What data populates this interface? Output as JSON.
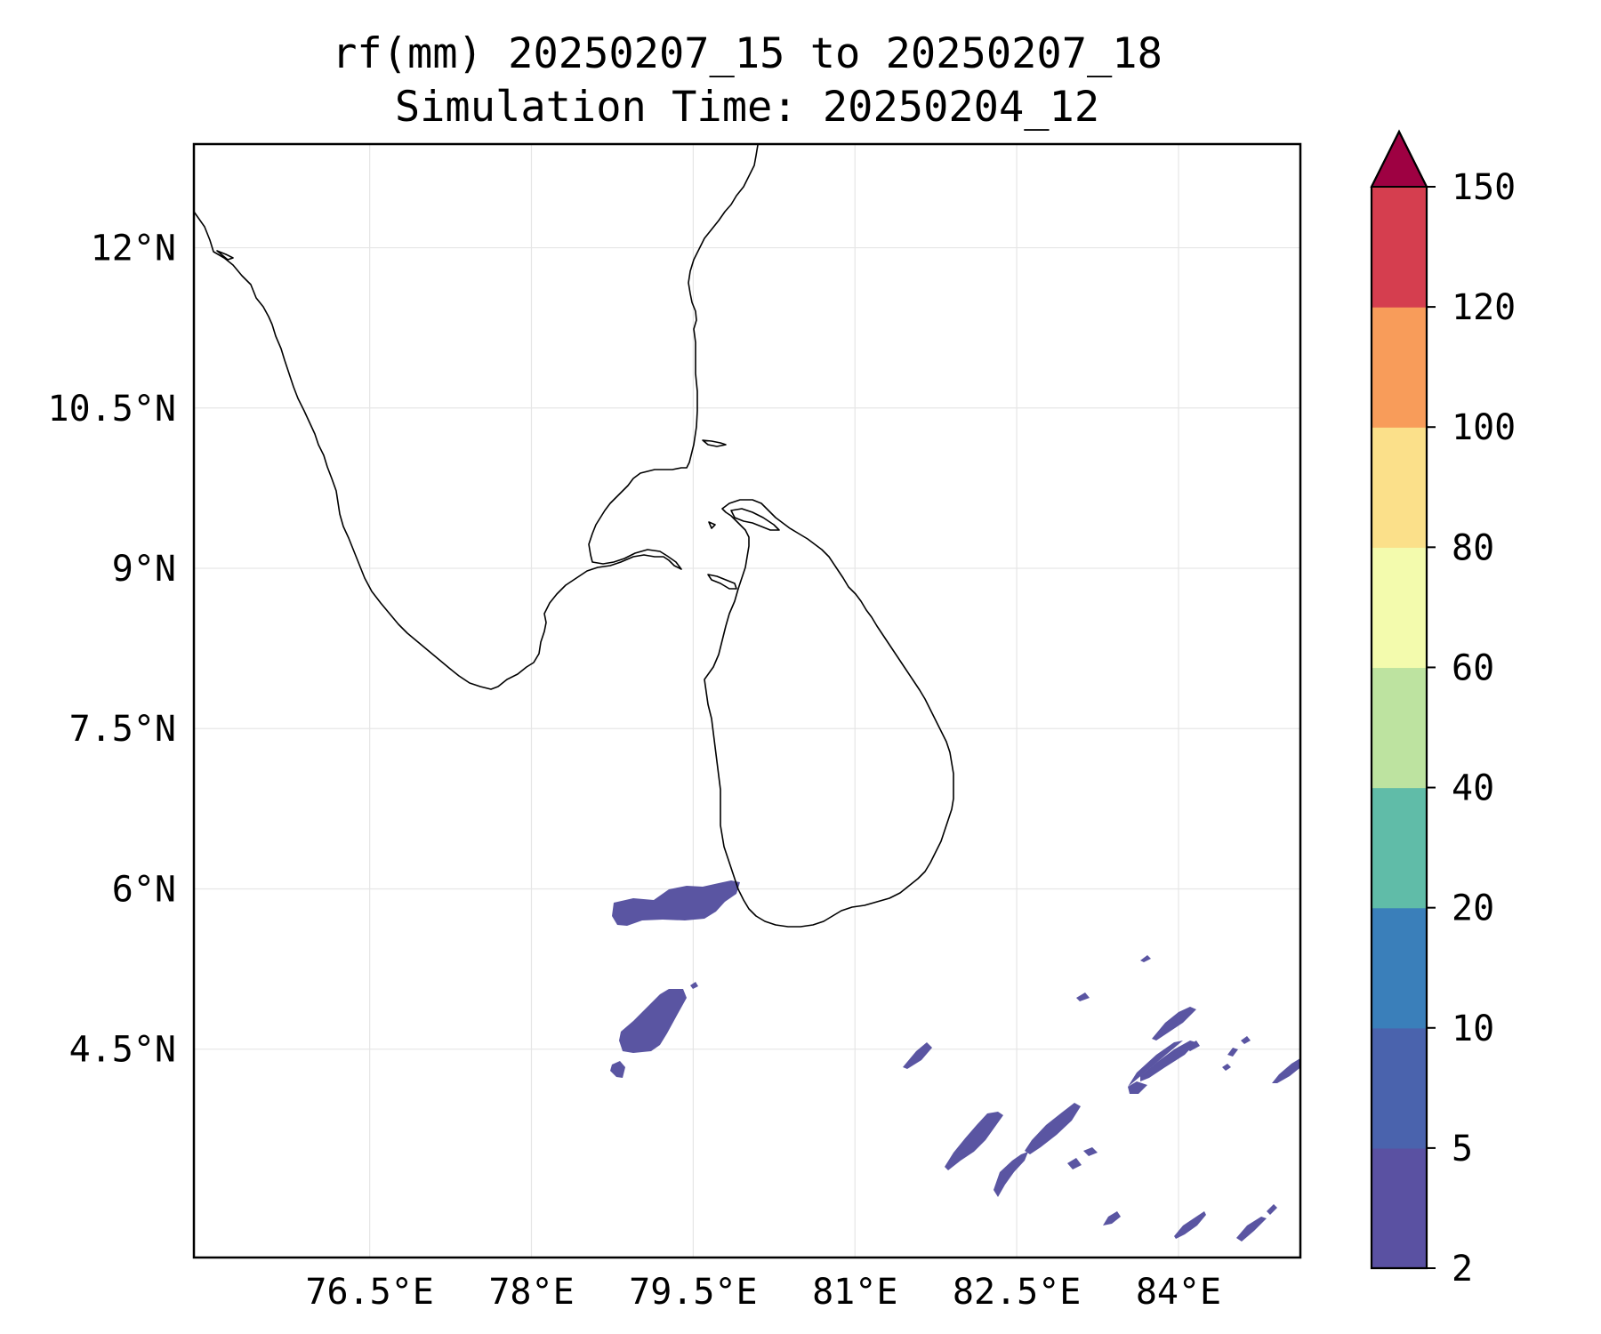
{
  "chart_data": {
    "type": "map",
    "variable": "rf(mm)",
    "title": "rf(mm) 20250207_15 to 20250207_18",
    "subtitle": "Simulation Time: 20250204_12",
    "projection": "PlateCarree",
    "extent": {
      "lon_min": 74.87,
      "lon_max": 85.13,
      "lat_min": 2.55,
      "lat_max": 12.97
    },
    "x_ticks": [
      {
        "value": 76.5,
        "label": "76.5°E"
      },
      {
        "value": 78.0,
        "label": "78°E"
      },
      {
        "value": 79.5,
        "label": "79.5°E"
      },
      {
        "value": 81.0,
        "label": "81°E"
      },
      {
        "value": 82.5,
        "label": "82.5°E"
      },
      {
        "value": 84.0,
        "label": "84°E"
      }
    ],
    "y_ticks": [
      {
        "value": 4.5,
        "label": "4.5°N"
      },
      {
        "value": 6.0,
        "label": "6°N"
      },
      {
        "value": 7.5,
        "label": "7.5°N"
      },
      {
        "value": 9.0,
        "label": "9°N"
      },
      {
        "value": 10.5,
        "label": "10.5°N"
      },
      {
        "value": 12.0,
        "label": "12°N"
      }
    ],
    "gridlines": true,
    "colorbar": {
      "orientation": "vertical",
      "location": "right",
      "extend": "max",
      "levels": [
        2,
        5,
        10,
        20,
        40,
        60,
        80,
        100,
        120,
        150
      ],
      "labels": [
        "2",
        "5",
        "10",
        "20",
        "40",
        "60",
        "80",
        "100",
        "120",
        "150"
      ],
      "colors": [
        "#5a51a2",
        "#4a63ad",
        "#3a7fba",
        "#60bca8",
        "#bde3a0",
        "#f3fbad",
        "#fbe08a",
        "#f89c5a",
        "#d53e4f"
      ],
      "over_color": "#9e0142"
    },
    "rain_regions": [
      {
        "area": "west of southern Sri Lanka",
        "bin": "2-5"
      },
      {
        "area": "southwest of Sri Lanka (near 79.2E 4.9N)",
        "bin": "2-5"
      },
      {
        "area": "scattered cells southeast of Sri Lanka (81-85E, 3-5.5N)",
        "bin": "2-5"
      }
    ]
  }
}
